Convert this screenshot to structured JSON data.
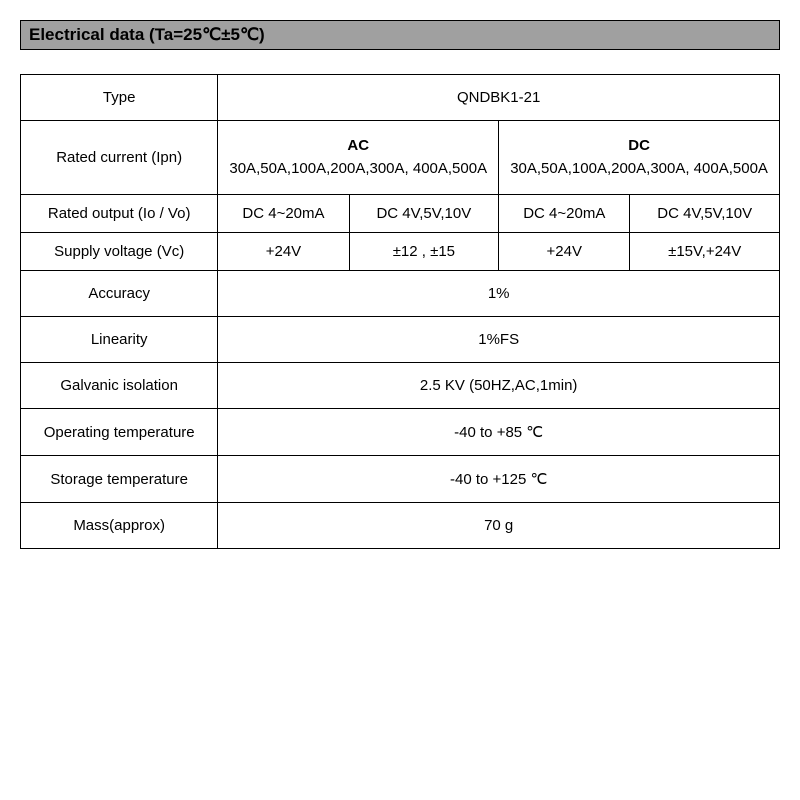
{
  "header": "Electrical data (Ta=25℃±5℃)",
  "table": {
    "type_label": "Type",
    "type_value": "QNDBK1-21",
    "rated_current_label": "Rated current (Ipn)",
    "ac_header": "AC",
    "ac_values": "30A,50A,100A,200A,300A, 400A,500A",
    "dc_header": "DC",
    "dc_values": "30A,50A,100A,200A,300A, 400A,500A",
    "rated_output_label": "Rated output (Io / Vo)",
    "out_ac1": "DC 4~20mA",
    "out_ac2": "DC 4V,5V,10V",
    "out_dc1": "DC 4~20mA",
    "out_dc2": "DC 4V,5V,10V",
    "supply_label": "Supply voltage (Vc)",
    "supply_ac1": "+24V",
    "supply_ac2": "±12 , ±15",
    "supply_dc1": "+24V",
    "supply_dc2": "±15V,+24V",
    "accuracy_label": "Accuracy",
    "accuracy_value": "1%",
    "linearity_label": "Linearity",
    "linearity_value": "1%FS",
    "galvanic_label": "Galvanic isolation",
    "galvanic_value": "2.5 KV (50HZ,AC,1min)",
    "op_temp_label": "Operating temperature",
    "op_temp_value": "-40 to +85 ℃",
    "st_temp_label": "Storage temperature",
    "st_temp_value": "-40 to +125 ℃",
    "mass_label": "Mass(approx)",
    "mass_value": "70 g"
  },
  "style": {
    "header_bg": "#a0a0a0",
    "border_color": "#000000",
    "bg": "#ffffff",
    "font_size_header": 17,
    "font_size_cell": 15,
    "font_family": "Arial"
  }
}
